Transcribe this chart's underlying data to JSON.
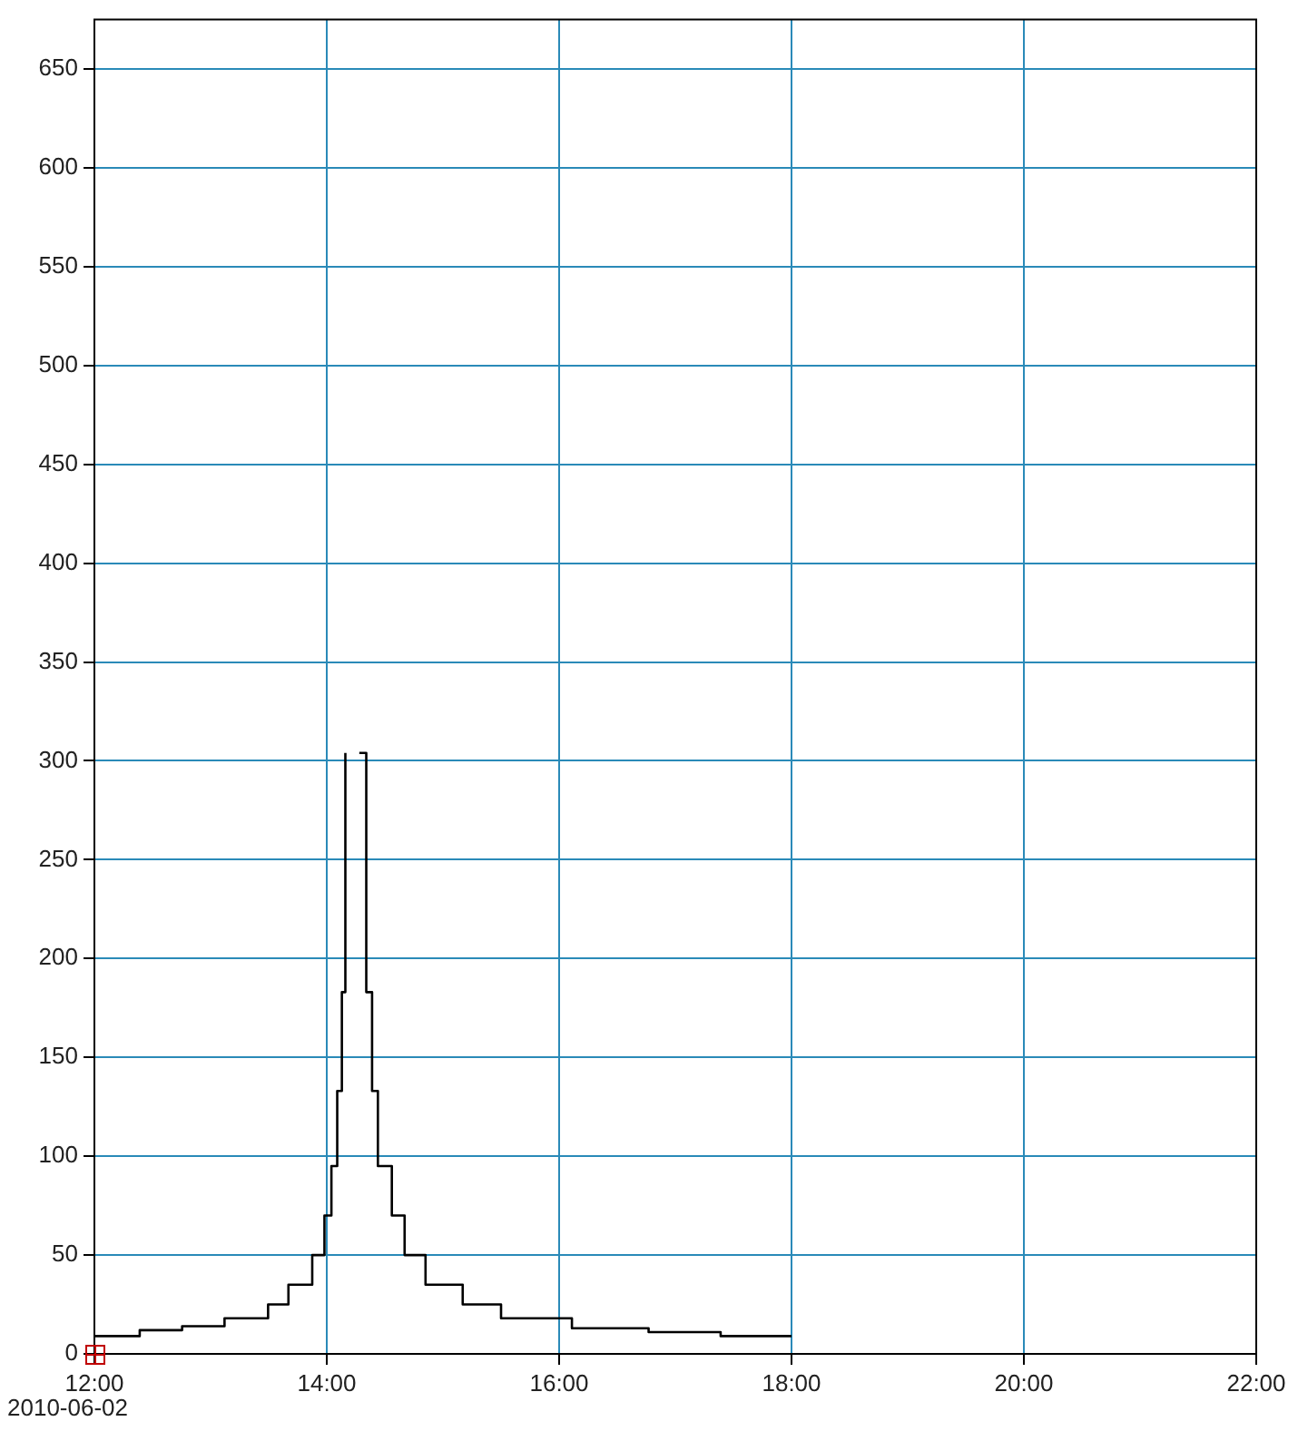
{
  "chart_data": {
    "type": "step",
    "x": [
      12.0,
      12.39,
      12.755,
      13.12,
      13.495,
      13.67,
      13.875,
      13.98,
      14.04,
      14.09,
      14.13,
      14.16,
      14.2,
      14.28,
      14.34,
      14.39,
      14.44,
      14.56,
      14.67,
      14.85,
      15.17,
      15.5,
      16.11,
      16.77,
      17.39,
      18.0
    ],
    "values": [
      9,
      12,
      14,
      18,
      25,
      35,
      50,
      70,
      95,
      133,
      183,
      304,
      null,
      304,
      183,
      133,
      95,
      70,
      50,
      35,
      25,
      18,
      13,
      11,
      9,
      9
    ],
    "color": "#000000",
    "xlim": [
      12,
      22
    ],
    "xticks": [
      {
        "value": 12,
        "label": "12:00"
      },
      {
        "value": 14,
        "label": "14:00"
      },
      {
        "value": 16,
        "label": "16:00"
      },
      {
        "value": 18,
        "label": "18:00"
      },
      {
        "value": 20,
        "label": "20:00"
      },
      {
        "value": 22,
        "label": "22:00"
      }
    ],
    "ylim": [
      0,
      675
    ],
    "yticks": [
      0,
      50,
      100,
      150,
      200,
      250,
      300,
      350,
      400,
      450,
      500,
      550,
      600,
      650
    ],
    "grid": true,
    "marker": "none",
    "line_style": "solid",
    "annotations": [
      "2010-06-02"
    ]
  }
}
